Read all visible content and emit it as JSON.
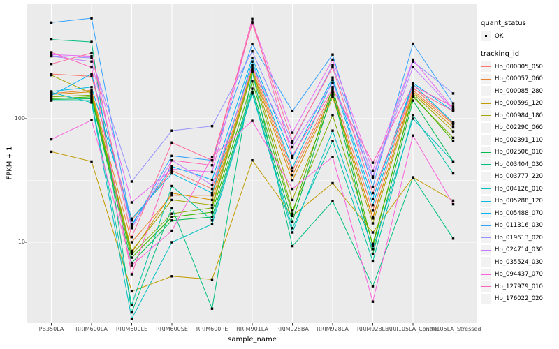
{
  "figure": {
    "x_axis_title": "sample_name",
    "y_axis_title": "FPKM + 1",
    "legend": {
      "quant_status_title": "quant_status",
      "quant_status_ok_label": "OK",
      "tracking_title": "tracking_id"
    }
  },
  "colors": {
    "panel_background": "#EBEBEB",
    "gridline": "#FFFFFF",
    "tick_text": "#4D4D4D",
    "point": "#000000",
    "legend_key_background": "#F2F2F2"
  },
  "chart_data": {
    "type": "line",
    "title": "",
    "xlabel": "sample_name",
    "ylabel": "FPKM + 1",
    "y_scale": "log10",
    "y_ticks": [
      100,
      10
    ],
    "y_minor_gridlines": [
      3.1623,
      31.623,
      316.23
    ],
    "ylim": [
      2.2,
      850
    ],
    "grid": true,
    "legend_position": "right",
    "point_shape": "black-square",
    "quant_status": "OK",
    "categories": [
      "PB350LA",
      "RRIM600LA",
      "RRIM600LE",
      "RRIM600SE",
      "RRIM600PE",
      "RRIM901LA",
      "RRIM928BA",
      "RRIM928LA",
      "RRIM928LE",
      "RRII105LA_Control",
      "RRII105LA_Stressed"
    ],
    "series": [
      {
        "name": "Hb_000005_050",
        "color": "#F8766D",
        "values": [
          230,
          220,
          15,
          38,
          27,
          270,
          38,
          170,
          18,
          180,
          92
        ]
      },
      {
        "name": "Hb_000057_060",
        "color": "#EA8331",
        "values": [
          160,
          170,
          10,
          24,
          24,
          255,
          35,
          160,
          15.6,
          170,
          90
        ]
      },
      {
        "name": "Hb_000085_280",
        "color": "#D89000",
        "values": [
          157,
          165,
          8.2,
          25,
          22,
          245,
          31.6,
          155,
          16,
          165,
          85
        ]
      },
      {
        "name": "Hb_000599_120",
        "color": "#C09B00",
        "values": [
          54,
          45,
          4,
          5.3,
          5,
          46,
          16.3,
          30,
          12,
          33.5,
          21.7
        ]
      },
      {
        "name": "Hb_000984_180",
        "color": "#A3A500",
        "values": [
          225,
          160,
          8.5,
          22,
          20,
          250,
          22,
          150,
          14.2,
          160,
          79
        ]
      },
      {
        "name": "Hb_002290_060",
        "color": "#7CAE00",
        "values": [
          150,
          155,
          8,
          17,
          19,
          240,
          18,
          107,
          9.7,
          150,
          70
        ]
      },
      {
        "name": "Hb_002391_110",
        "color": "#39B600",
        "values": [
          145,
          150,
          7.5,
          16,
          17.5,
          200,
          17,
          180,
          9.3,
          155,
          66
        ]
      },
      {
        "name": "Hb_002506_010",
        "color": "#00BB4E",
        "values": [
          143,
          145,
          6.8,
          15,
          16,
          175,
          14.7,
          165,
          8,
          140,
          45
        ]
      },
      {
        "name": "Hb_003404_030",
        "color": "#00BF7D",
        "values": [
          437,
          418,
          2.7,
          19,
          2.9,
          240,
          9.3,
          21.5,
          4.4,
          33.5,
          10.7
        ]
      },
      {
        "name": "Hb_003777_220",
        "color": "#00C1A3",
        "values": [
          140,
          140,
          3.1,
          28.5,
          15,
          165,
          13,
          66,
          7,
          107,
          36
        ]
      },
      {
        "name": "Hb_004126_010",
        "color": "#00BFC4",
        "values": [
          163,
          135,
          2.4,
          10,
          14,
          160,
          12,
          80,
          8.8,
          100,
          45
        ]
      },
      {
        "name": "Hb_005288_120",
        "color": "#00BAE0",
        "values": [
          166,
          180,
          15.5,
          36,
          25,
          290,
          40,
          205,
          20,
          190,
          93
        ]
      },
      {
        "name": "Hb_005488_070",
        "color": "#00B0F6",
        "values": [
          154,
          230,
          14,
          41,
          32,
          310,
          48,
          215,
          22.5,
          195,
          115
        ]
      },
      {
        "name": "Hb_011316_030",
        "color": "#35A2FF",
        "values": [
          600,
          650,
          13.5,
          50,
          46,
          400,
          115,
          330,
          28,
          405,
          133
        ]
      },
      {
        "name": "Hb_019613_020",
        "color": "#9590FF",
        "values": [
          322,
          310,
          31,
          80,
          87,
          350,
          64,
          270,
          34,
          290,
          160
        ]
      },
      {
        "name": "Hb_024714_030",
        "color": "#C77CFF",
        "values": [
          320,
          290,
          13,
          46,
          29,
          265,
          59,
          195,
          33,
          262,
          118
        ]
      },
      {
        "name": "Hb_035524_030",
        "color": "#E76BF3",
        "values": [
          330,
          320,
          21,
          39,
          37,
          610,
          77,
          300,
          38,
          300,
          120
        ]
      },
      {
        "name": "Hb_094437_070",
        "color": "#FA62DB",
        "values": [
          68,
          97,
          6.5,
          12.4,
          49,
          96,
          27,
          49,
          3.3,
          73,
          20.3
        ]
      },
      {
        "name": "Hb_127979_010",
        "color": "#FF62BC",
        "values": [
          344,
          260,
          5.5,
          46,
          42,
          640,
          50,
          175,
          44,
          185,
          125
        ]
      },
      {
        "name": "Hb_176022_020",
        "color": "#FF6A98",
        "values": [
          277,
          340,
          11,
          64,
          46,
          590,
          66,
          260,
          25,
          175,
          115
        ]
      }
    ]
  }
}
